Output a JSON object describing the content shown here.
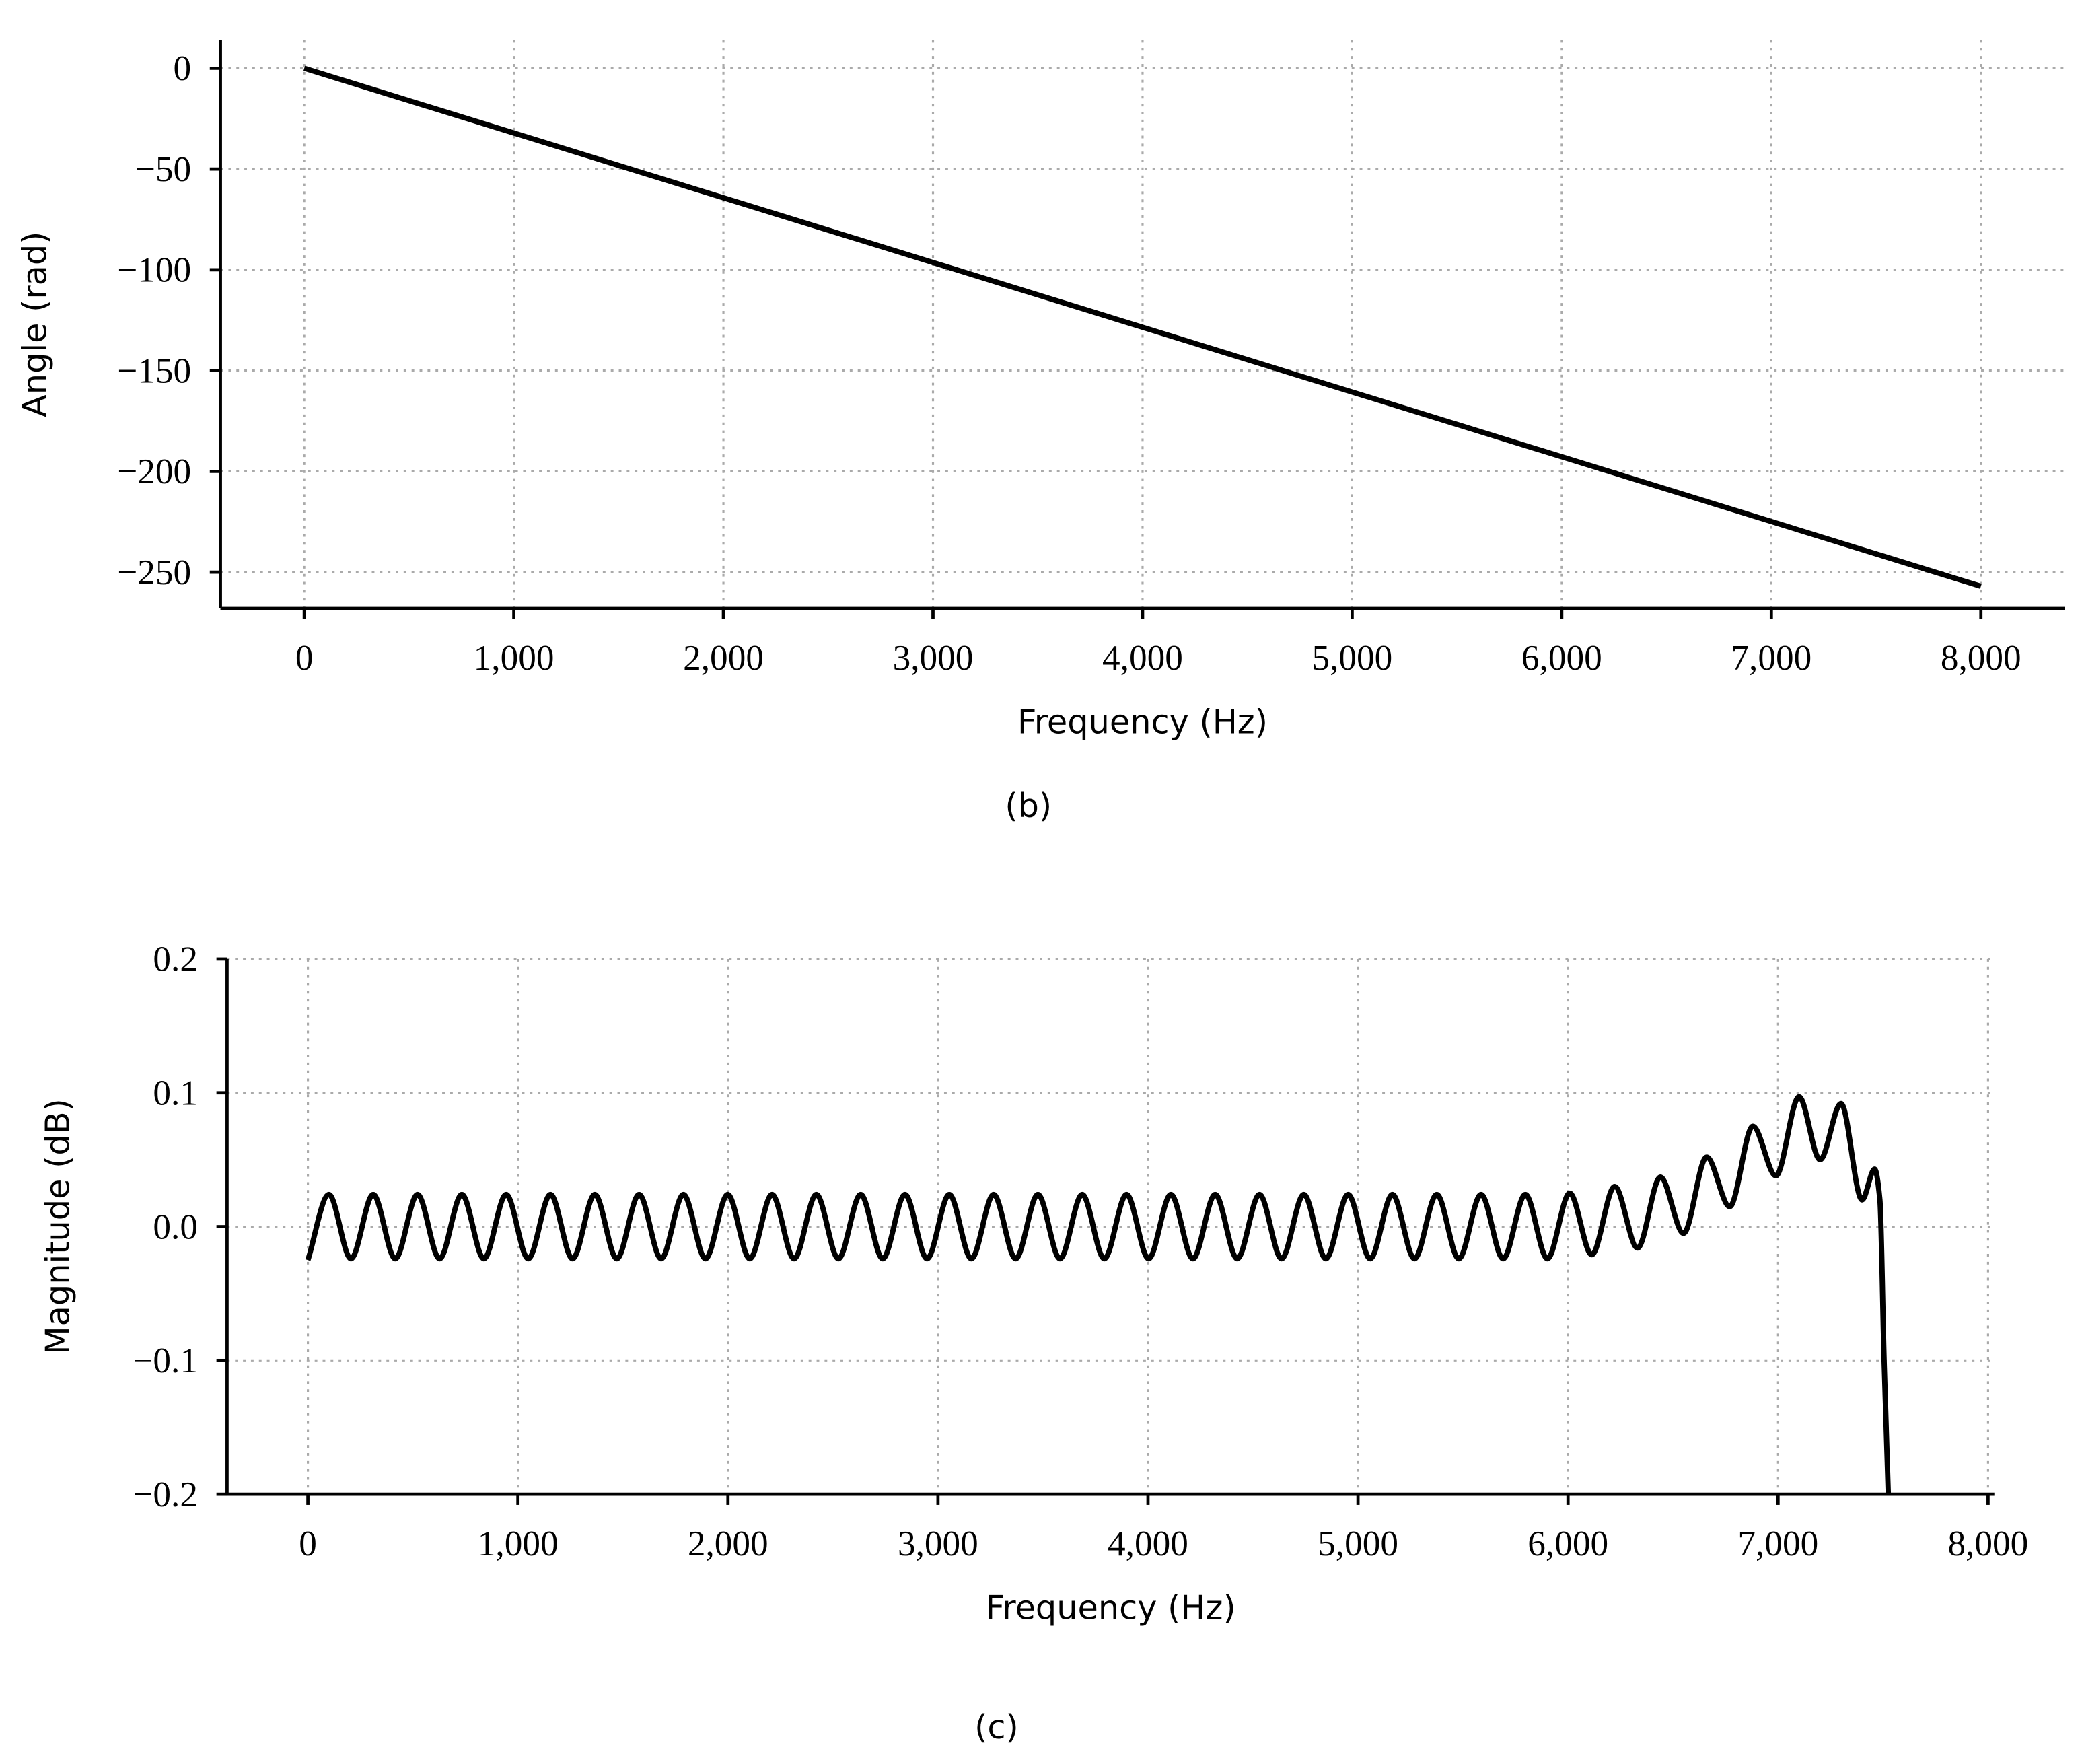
{
  "chart_data": [
    {
      "type": "line",
      "caption": "(b)",
      "xlabel": "Frequency (Hz)",
      "ylabel": "Angle (rad)",
      "x": [
        0,
        8000
      ],
      "values": [
        0,
        -257
      ],
      "color": "#000000",
      "xlim": [
        -400,
        8400
      ],
      "ylim": [
        -268,
        14
      ],
      "grid": true,
      "xticks": [
        0,
        {
          "value": 1000,
          "label": "1,000"
        },
        {
          "value": 2000,
          "label": "2,000"
        },
        {
          "value": 3000,
          "label": "3,000"
        },
        {
          "value": 4000,
          "label": "4,000"
        },
        {
          "value": 5000,
          "label": "5,000"
        },
        {
          "value": 6000,
          "label": "6,000"
        },
        {
          "value": 7000,
          "label": "7,000"
        },
        {
          "value": 8000,
          "label": "8,000"
        }
      ],
      "yticks": [
        0,
        {
          "value": -50,
          "label": "−50"
        },
        {
          "value": -100,
          "label": "−100"
        },
        {
          "value": -150,
          "label": "−150"
        },
        {
          "value": -200,
          "label": "−200"
        },
        {
          "value": -250,
          "label": "−250"
        }
      ]
    },
    {
      "type": "line",
      "caption": "(c)",
      "xlabel": "Frequency (Hz)",
      "ylabel": "Magnitude (dB)",
      "x": [
        0,
        100,
        205,
        311,
        416,
        522,
        627,
        733,
        838,
        944,
        1049,
        1155,
        1260,
        1366,
        1471,
        1577,
        1682,
        1788,
        1893,
        1999,
        2104,
        2210,
        2315,
        2421,
        2526,
        2632,
        2737,
        2843,
        2948,
        3054,
        3159,
        3265,
        3370,
        3476,
        3581,
        3687,
        3792,
        3898,
        4003,
        4109,
        4214,
        4320,
        4425,
        4531,
        4636,
        4742,
        4847,
        4953,
        5058,
        5164,
        5269,
        5375,
        5480,
        5586,
        5691,
        5797,
        5902,
        6008,
        6113,
        6222,
        6331,
        6440,
        6550,
        6660,
        6770,
        6880,
        6990,
        7100,
        7200,
        7300,
        7400,
        7460,
        7485,
        7505,
        7525
      ],
      "values": [
        -0.025,
        0.024,
        -0.024,
        0.024,
        -0.024,
        0.024,
        -0.024,
        0.024,
        -0.024,
        0.024,
        -0.024,
        0.024,
        -0.024,
        0.024,
        -0.024,
        0.024,
        -0.024,
        0.024,
        -0.024,
        0.024,
        -0.024,
        0.024,
        -0.024,
        0.024,
        -0.024,
        0.024,
        -0.024,
        0.024,
        -0.024,
        0.024,
        -0.024,
        0.024,
        -0.024,
        0.024,
        -0.024,
        0.024,
        -0.024,
        0.024,
        -0.024,
        0.024,
        -0.024,
        0.024,
        -0.024,
        0.024,
        -0.024,
        0.024,
        -0.024,
        0.024,
        -0.024,
        0.024,
        -0.024,
        0.024,
        -0.024,
        0.024,
        -0.024,
        0.024,
        -0.024,
        0.025,
        -0.021,
        0.03,
        -0.016,
        0.037,
        -0.005,
        0.052,
        0.015,
        0.075,
        0.038,
        0.097,
        0.05,
        0.092,
        0.02,
        0.043,
        0.02,
        -0.1,
        -0.2
      ],
      "color": "#000000",
      "xlim": [
        -385,
        8030
      ],
      "ylim": [
        -0.2,
        0.2
      ],
      "grid": true,
      "xticks": [
        0,
        {
          "value": 1000,
          "label": "1,000"
        },
        {
          "value": 2000,
          "label": "2,000"
        },
        {
          "value": 3000,
          "label": "3,000"
        },
        {
          "value": 4000,
          "label": "4,000"
        },
        {
          "value": 5000,
          "label": "5,000"
        },
        {
          "value": 6000,
          "label": "6,000"
        },
        {
          "value": 7000,
          "label": "7,000"
        },
        {
          "value": 8000,
          "label": "8,000"
        }
      ],
      "yticks": [
        {
          "value": 0.2,
          "label": "0.2"
        },
        {
          "value": 0.1,
          "label": "0.1"
        },
        {
          "value": 0,
          "label": "0.0"
        },
        {
          "value": -0.1,
          "label": "−0.1"
        },
        {
          "value": -0.2,
          "label": "−0.2"
        }
      ]
    }
  ]
}
